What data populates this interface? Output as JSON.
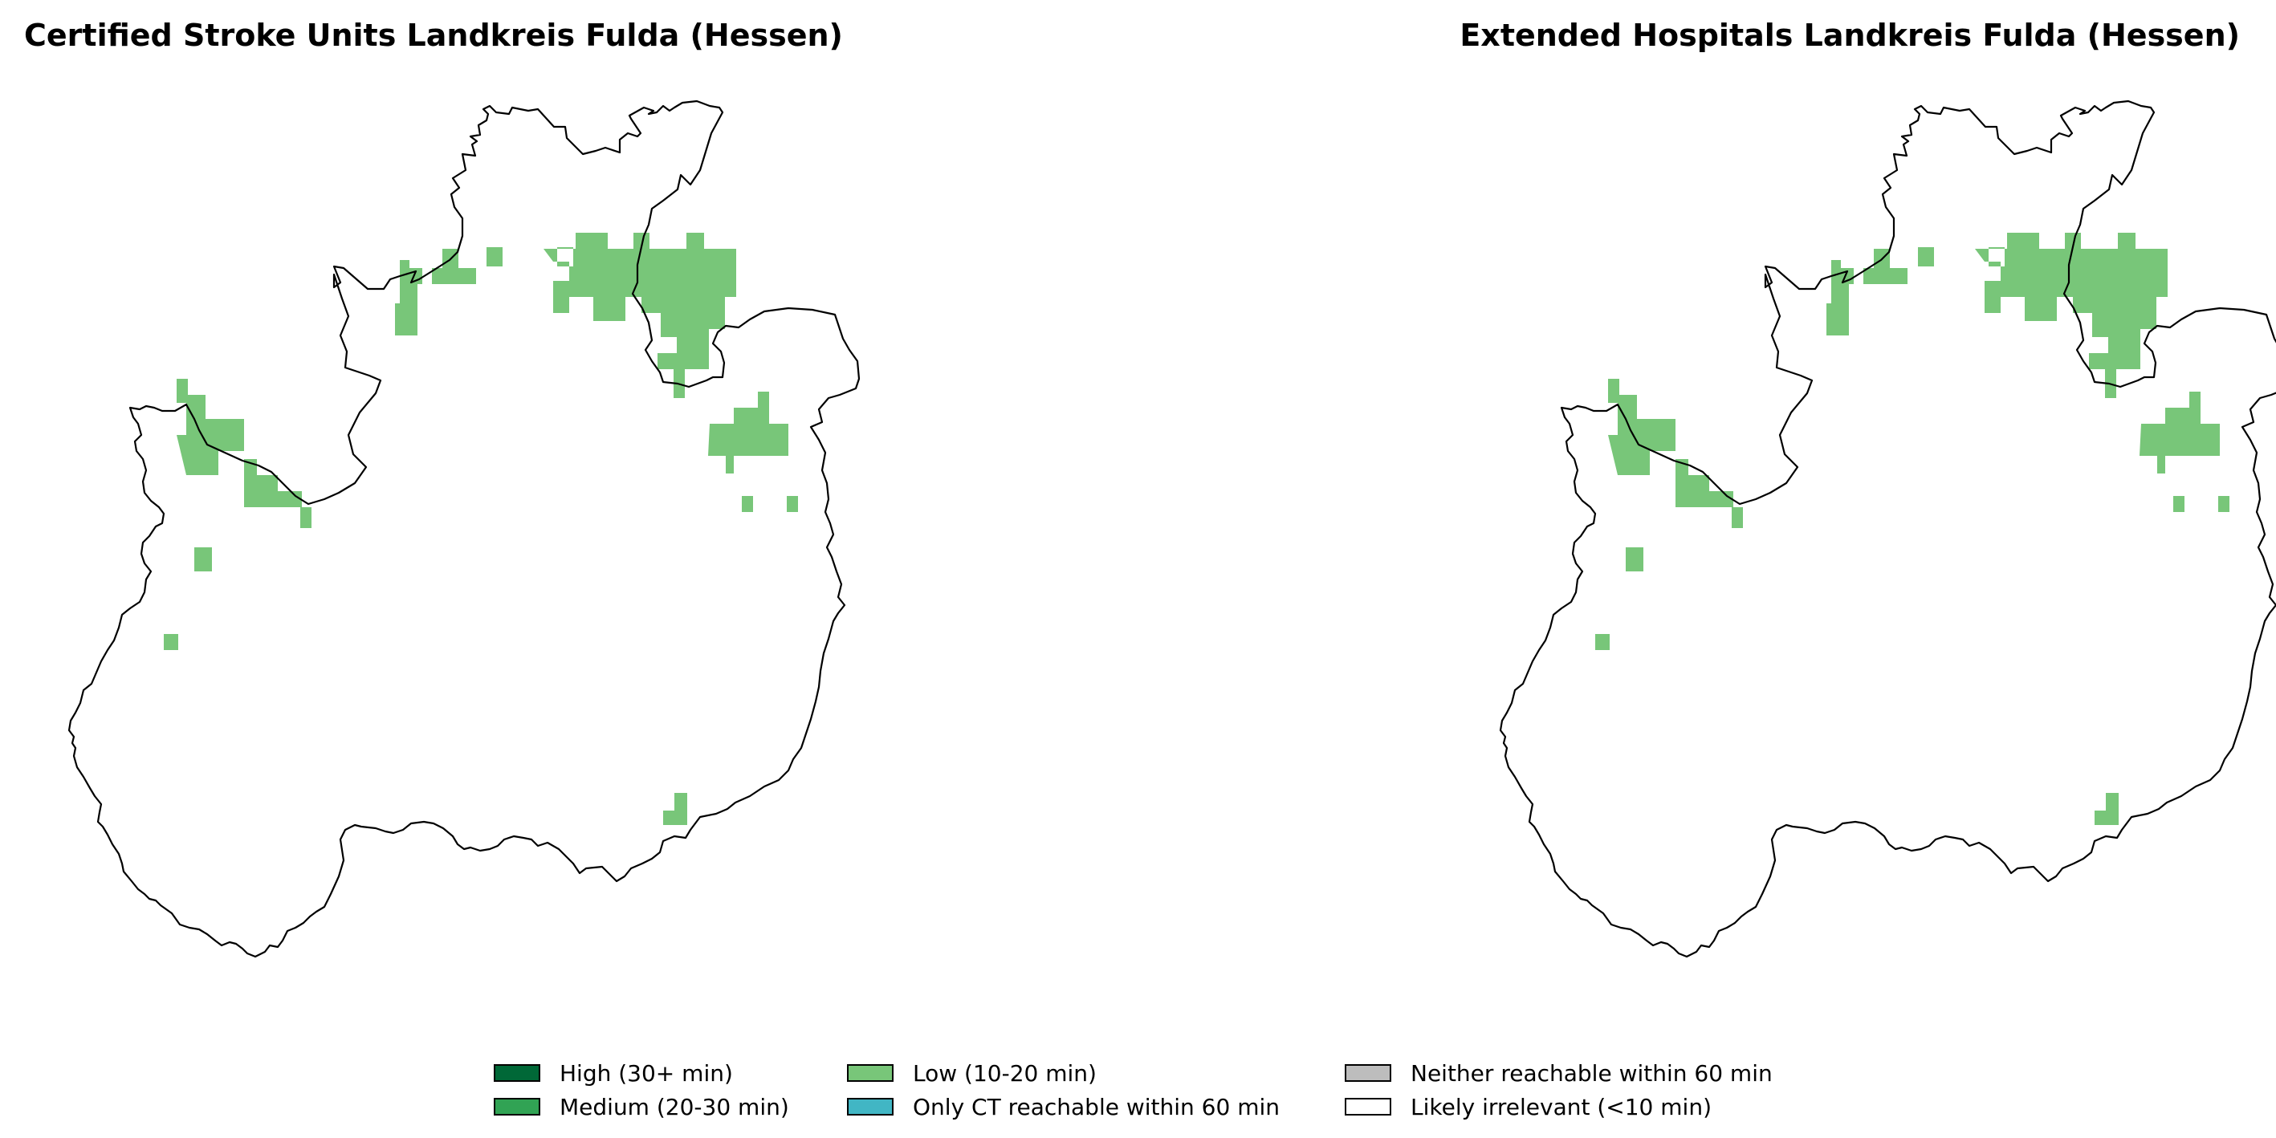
{
  "maps": [
    {
      "title": "Certified Stroke Units Landkreis Fulda (Hessen)"
    },
    {
      "title": "Extended Hospitals Landkreis Fulda (Hessen)"
    }
  ],
  "legend": {
    "items": [
      {
        "label": "High (30+ min)",
        "color": "#006837"
      },
      {
        "label": "Medium (20-30 min)",
        "color": "#31a354"
      },
      {
        "label": "Low (10-20 min)",
        "color": "#78c679"
      },
      {
        "label": "Only CT reachable within 60 min",
        "color": "#41b6c4"
      },
      {
        "label": "Neither reachable within 60 min",
        "color": "#bdbdbd"
      },
      {
        "label": "Likely irrelevant (<10 min)",
        "color": "#ffffff"
      }
    ]
  },
  "colors": {
    "boundary": "#000000",
    "low_fill": "#78c679"
  }
}
